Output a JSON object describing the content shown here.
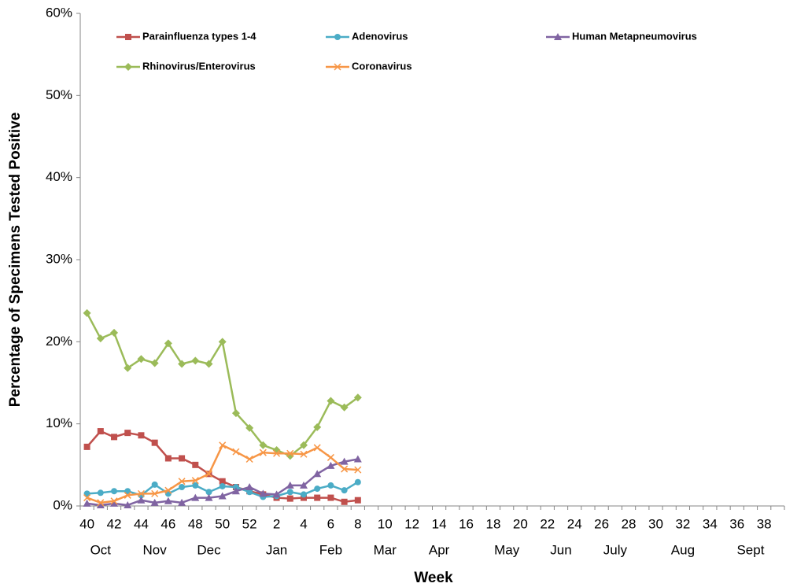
{
  "chart_data": {
    "type": "line",
    "y_label": "Percentage of Specimens Tested Positive",
    "x_label": "Week",
    "categories": [
      "40",
      null,
      "42",
      null,
      "44",
      null,
      "46",
      null,
      "48",
      null,
      "50",
      null,
      "52",
      null,
      "2",
      null,
      "4",
      null,
      "6",
      null,
      "8",
      null,
      "10",
      null,
      "12",
      null,
      "14",
      null,
      "16",
      null,
      "18",
      null,
      "20",
      null,
      "22",
      null,
      "24",
      null,
      "26",
      null,
      "28",
      null,
      "30",
      null,
      "32",
      null,
      "34",
      null,
      "36",
      null,
      "38",
      null
    ],
    "months": [
      null,
      "Oct",
      null,
      null,
      null,
      "Nov",
      null,
      null,
      null,
      "Dec",
      null,
      null,
      null,
      null,
      "Jan",
      null,
      null,
      null,
      "Feb",
      null,
      null,
      null,
      "Mar",
      null,
      null,
      null,
      "Apr",
      null,
      null,
      null,
      null,
      "May",
      null,
      null,
      null,
      "Jun",
      null,
      null,
      null,
      "July",
      null,
      null,
      null,
      null,
      "Aug",
      null,
      null,
      null,
      null,
      "Sept",
      null,
      null
    ],
    "ylim": [
      0,
      60
    ],
    "yticks": [
      {
        "value": 0,
        "label": "0%"
      },
      {
        "value": 10,
        "label": "10%"
      },
      {
        "value": 20,
        "label": "20%"
      },
      {
        "value": 30,
        "label": "30%"
      },
      {
        "value": 40,
        "label": "40%"
      },
      {
        "value": 50,
        "label": "50%"
      },
      {
        "value": 60,
        "label": "60%"
      }
    ],
    "series": [
      {
        "name": "Parainfluenza types 1-4",
        "color": "#c0504d",
        "marker": "square",
        "values": [
          7.2,
          9.1,
          8.4,
          8.9,
          8.6,
          7.7,
          5.8,
          5.8,
          5.0,
          3.9,
          3.0,
          2.3,
          1.8,
          1.4,
          1.0,
          0.9,
          1.0,
          1.0,
          1.0,
          0.5,
          0.7,
          null,
          null,
          null,
          null,
          null,
          null,
          null,
          null,
          null,
          null,
          null,
          null,
          null,
          null,
          null,
          null,
          null,
          null,
          null,
          null,
          null,
          null,
          null,
          null,
          null,
          null,
          null,
          null,
          null,
          null,
          null
        ]
      },
      {
        "name": "Adenovirus",
        "color": "#4bacc6",
        "marker": "circle",
        "values": [
          1.5,
          1.6,
          1.8,
          1.8,
          1.3,
          2.6,
          1.5,
          2.3,
          2.5,
          1.7,
          2.4,
          2.3,
          1.7,
          1.1,
          1.2,
          1.7,
          1.4,
          2.1,
          2.5,
          1.9,
          2.9,
          null,
          null,
          null,
          null,
          null,
          null,
          null,
          null,
          null,
          null,
          null,
          null,
          null,
          null,
          null,
          null,
          null,
          null,
          null,
          null,
          null,
          null,
          null,
          null,
          null,
          null,
          null,
          null,
          null,
          null,
          null
        ]
      },
      {
        "name": "Human Metapneumovirus",
        "color": "#8064a2",
        "marker": "triangle",
        "values": [
          0.3,
          0.1,
          0.3,
          0.1,
          0.7,
          0.4,
          0.6,
          0.4,
          1.0,
          1.0,
          1.2,
          1.8,
          2.3,
          1.5,
          1.4,
          2.5,
          2.5,
          3.9,
          4.9,
          5.4,
          5.7,
          null,
          null,
          null,
          null,
          null,
          null,
          null,
          null,
          null,
          null,
          null,
          null,
          null,
          null,
          null,
          null,
          null,
          null,
          null,
          null,
          null,
          null,
          null,
          null,
          null,
          null,
          null,
          null,
          null,
          null,
          null
        ]
      },
      {
        "name": "Rhinovirus/Enterovirus",
        "color": "#9bbb59",
        "marker": "diamond",
        "values": [
          23.5,
          20.4,
          21.1,
          16.8,
          17.9,
          17.4,
          19.8,
          17.3,
          17.7,
          17.3,
          20.0,
          11.3,
          9.5,
          7.4,
          6.8,
          6.1,
          7.4,
          9.6,
          12.8,
          12.0,
          13.2,
          null,
          null,
          null,
          null,
          null,
          null,
          null,
          null,
          null,
          null,
          null,
          null,
          null,
          null,
          null,
          null,
          null,
          null,
          null,
          null,
          null,
          null,
          null,
          null,
          null,
          null,
          null,
          null,
          null,
          null,
          null
        ]
      },
      {
        "name": "Coronavirus",
        "color": "#f79646",
        "marker": "x",
        "values": [
          1.0,
          0.4,
          0.6,
          1.3,
          1.5,
          1.5,
          1.9,
          3.0,
          3.1,
          3.9,
          7.4,
          6.6,
          5.7,
          6.5,
          6.4,
          6.4,
          6.3,
          7.1,
          5.9,
          4.5,
          4.4,
          null,
          null,
          null,
          null,
          null,
          null,
          null,
          null,
          null,
          null,
          null,
          null,
          null,
          null,
          null,
          null,
          null,
          null,
          null,
          null,
          null,
          null,
          null,
          null,
          null,
          null,
          null,
          null,
          null,
          null,
          null
        ]
      }
    ]
  }
}
